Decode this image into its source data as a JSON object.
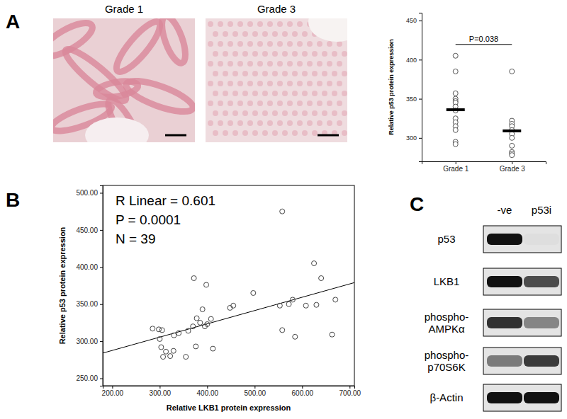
{
  "panel_labels": [
    "A",
    "B",
    "C"
  ],
  "chart_data": [
    {
      "type": "image",
      "titles": [
        "Grade 1",
        "Grade 3"
      ]
    },
    {
      "type": "strip",
      "categories": [
        "Grade 1",
        "Grade 3"
      ],
      "values": [
        [
          405,
          385,
          357,
          350,
          347,
          345,
          340,
          335,
          325,
          320,
          315,
          310,
          295,
          292
        ],
        [
          385,
          322,
          318,
          315,
          310,
          305,
          300,
          290,
          282,
          280,
          278
        ]
      ],
      "means": [
        336,
        309
      ],
      "ylabel": "Relative p53 protein expression",
      "ylim": [
        270,
        460
      ],
      "yticks": [
        300,
        350,
        400,
        450
      ],
      "annotation": "P=0.038"
    },
    {
      "type": "scatter",
      "x": [
        285,
        298,
        305,
        300,
        303,
        307,
        313,
        322,
        329,
        330,
        340,
        355,
        360,
        370,
        372,
        378,
        376,
        385,
        390,
        395,
        398,
        400,
        408,
        412,
        448,
        455,
        497,
        553,
        558,
        558,
        572,
        580,
        585,
        608,
        625,
        630,
        640,
        663,
        670
      ],
      "values": [
        317,
        316,
        315,
        303,
        292,
        279,
        286,
        280,
        287,
        308,
        311,
        279,
        314,
        320,
        385,
        331,
        293,
        325,
        343,
        320,
        376,
        323,
        330,
        290,
        345,
        348,
        365,
        348,
        315,
        475,
        350,
        356,
        306,
        348,
        405,
        349,
        385,
        309,
        356
      ],
      "fit": {
        "x": [
          180,
          710
        ],
        "values": [
          284,
          379
        ]
      },
      "annotations": [
        "R Linear = 0.601",
        "P = 0.0001",
        "N = 39"
      ],
      "xlabel": "Relative LKB1 protein expression",
      "ylabel": "Relative p53 protein expression",
      "xlim": [
        180,
        710
      ],
      "xticks": [
        {
          "value": 200,
          "label": "200.00"
        },
        {
          "value": 300,
          "label": "300.00"
        },
        {
          "value": 400,
          "label": "400.00"
        },
        {
          "value": 500,
          "label": "500.00"
        },
        {
          "value": 600,
          "label": "600.00"
        },
        {
          "value": 700,
          "label": "700.00"
        }
      ],
      "ylim": [
        240,
        510
      ],
      "yticks": [
        {
          "value": 250,
          "label": "250.00"
        },
        {
          "value": 300,
          "label": "300.00"
        },
        {
          "value": 350,
          "label": "350.00"
        },
        {
          "value": 400,
          "label": "400.00"
        },
        {
          "value": 450,
          "label": "450.00"
        },
        {
          "value": 500,
          "label": "500.00"
        }
      ]
    },
    {
      "type": "blot",
      "categories": [
        "-ve",
        "p53i"
      ],
      "series": [
        {
          "name": "p53",
          "values": [
            1.0,
            0.03
          ]
        },
        {
          "name": "LKB1",
          "values": [
            1.0,
            0.72
          ]
        },
        {
          "name": "phospho-AMPKα",
          "values": [
            0.85,
            0.45
          ]
        },
        {
          "name": "phospho-p70S6K",
          "values": [
            0.5,
            0.8
          ]
        },
        {
          "name": "β-Actin",
          "values": [
            1.0,
            1.0
          ]
        }
      ]
    }
  ]
}
